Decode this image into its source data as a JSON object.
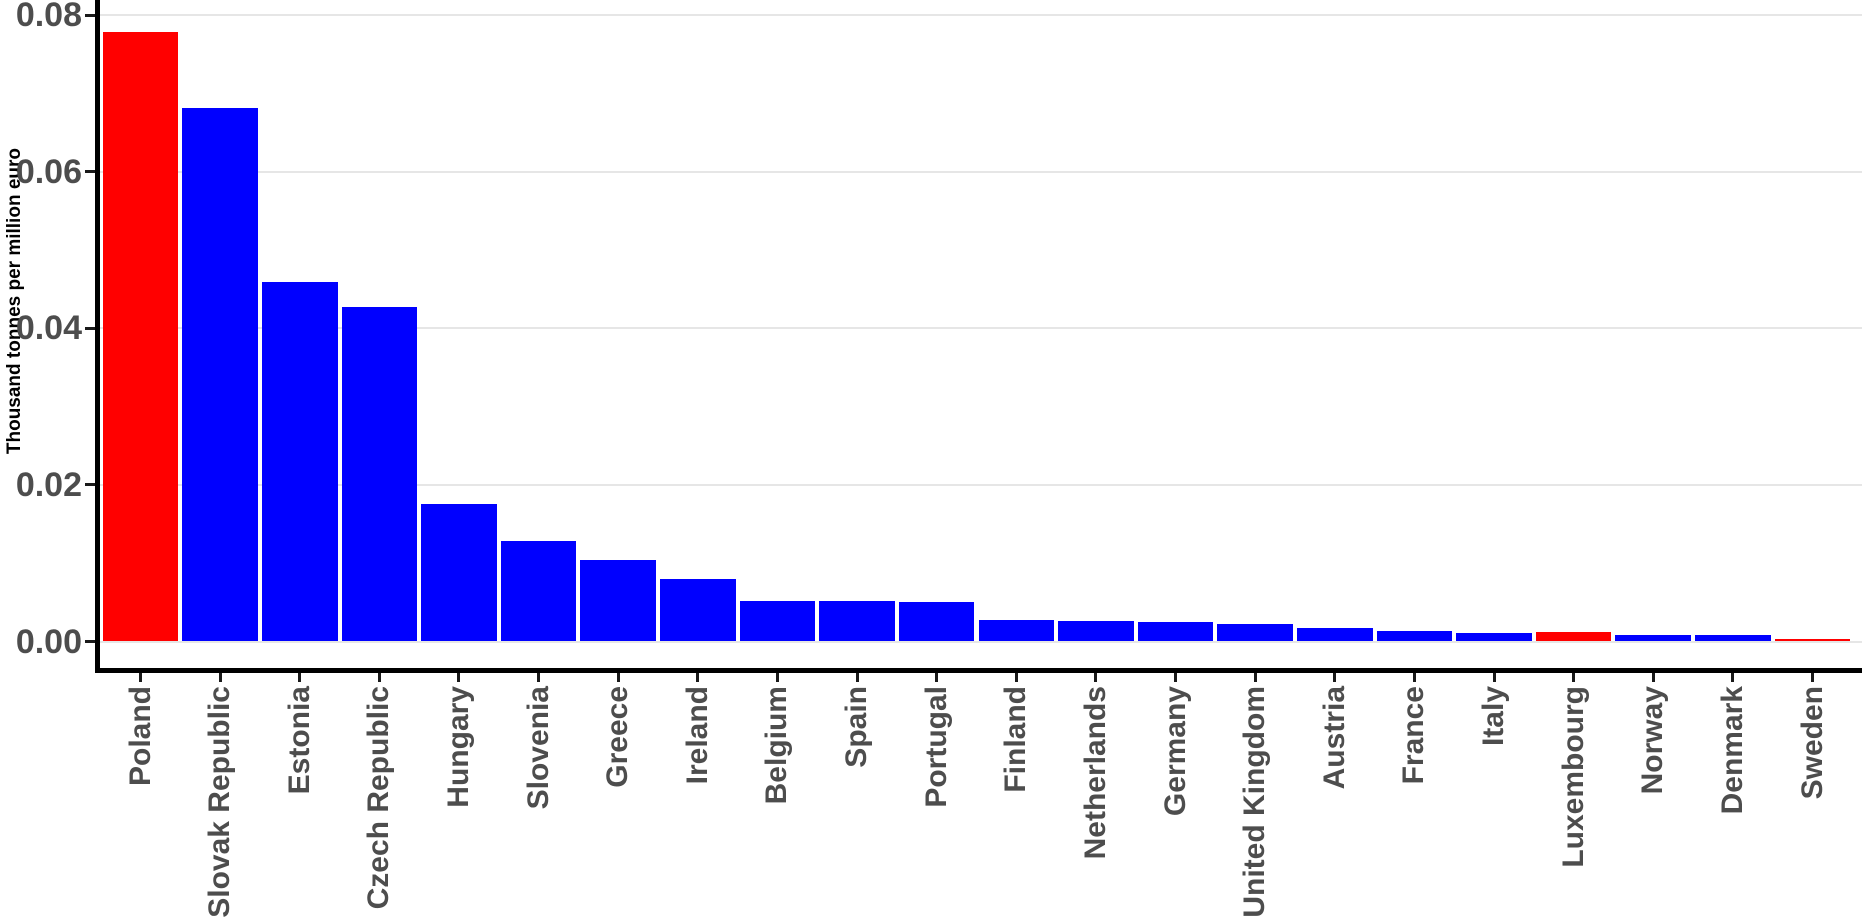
{
  "chart_data": {
    "type": "bar",
    "title": "",
    "xlabel": "",
    "ylabel": "Thousand tonnes per million euro",
    "ylim": [
      0,
      0.08
    ],
    "ytick_values": [
      0.0,
      0.02,
      0.04,
      0.06,
      0.08
    ],
    "ytick_labels": [
      "0.00",
      "0.02",
      "0.04",
      "0.06",
      "0.08"
    ],
    "grid": "horizontal major gridlines only",
    "legend_position": "none",
    "x_label_rotation_degrees": 90,
    "categories": [
      "Poland",
      "Slovak Republic",
      "Estonia",
      "Czech Republic",
      "Hungary",
      "Slovenia",
      "Greece",
      "Ireland",
      "Belgium",
      "Spain",
      "Portugal",
      "Finland",
      "Netherlands",
      "Germany",
      "United Kingdom",
      "Austria",
      "France",
      "Italy",
      "Luxembourg",
      "Norway",
      "Denmark",
      "Sweden"
    ],
    "values": [
      0.0778,
      0.0681,
      0.0459,
      0.0427,
      0.0176,
      0.0128,
      0.0104,
      0.008,
      0.0052,
      0.0052,
      0.005,
      0.0027,
      0.0026,
      0.0025,
      0.0022,
      0.0017,
      0.0013,
      0.0011,
      0.0012,
      0.0008,
      0.0008,
      0.0003
    ],
    "bar_colors": [
      "#ff0000",
      "#0000ff",
      "#0000ff",
      "#0000ff",
      "#0000ff",
      "#0000ff",
      "#0000ff",
      "#0000ff",
      "#0000ff",
      "#0000ff",
      "#0000ff",
      "#0000ff",
      "#0000ff",
      "#0000ff",
      "#0000ff",
      "#0000ff",
      "#0000ff",
      "#0000ff",
      "#ff0000",
      "#0000ff",
      "#0000ff",
      "#ff0000"
    ],
    "highlighted_categories": [
      "Poland",
      "Luxembourg",
      "Sweden"
    ],
    "colors": {
      "highlight": "#ff0000",
      "default_bar": "#0000ff",
      "axis": "#000000",
      "tick_mark": "#1a1a1a",
      "tick_text": "#4d4d4d",
      "grid": "#e6e6e6",
      "background": "#ffffff"
    }
  }
}
